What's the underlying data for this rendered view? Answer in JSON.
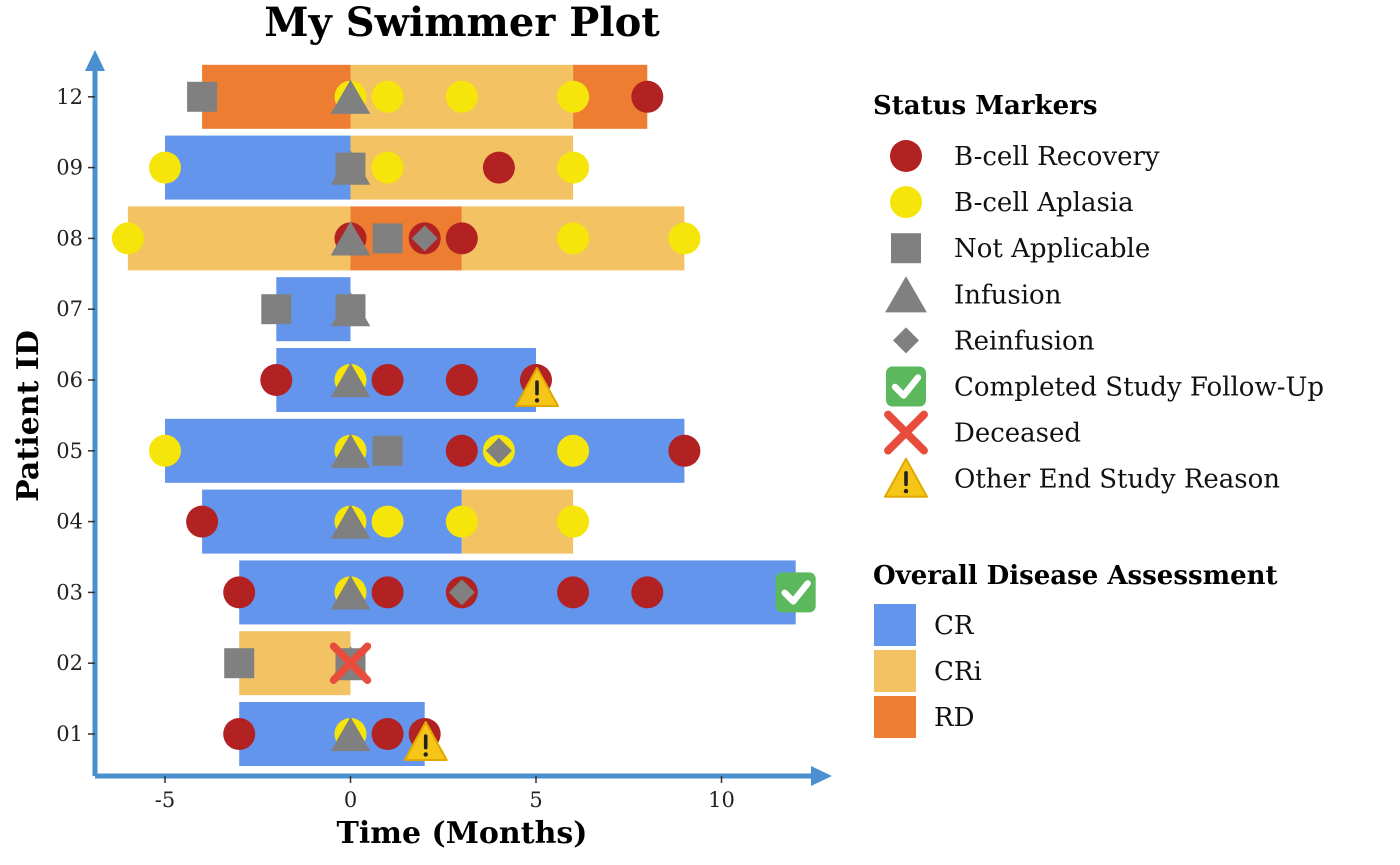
{
  "chart_data": {
    "type": "swimmer",
    "title": "My Swimmer Plot",
    "xlabel": "Time (Months)",
    "ylabel": "Patient ID",
    "xlim": [
      -7,
      13
    ],
    "xticks": [
      -5,
      0,
      5,
      10
    ],
    "x_tick_labels": [
      "-5",
      "0",
      "5",
      "10"
    ],
    "patients": [
      "01",
      "02",
      "03",
      "04",
      "05",
      "06",
      "07",
      "08",
      "09",
      "12"
    ],
    "assessment_colors": {
      "CR": "#6495ED",
      "CRi": "#F3C262",
      "RD": "#ED7D31"
    },
    "segments": [
      {
        "patient": "01",
        "start": -3,
        "end": 2,
        "status": "CR"
      },
      {
        "patient": "02",
        "start": -3,
        "end": 0,
        "status": "CRi"
      },
      {
        "patient": "03",
        "start": -3,
        "end": 12,
        "status": "CR"
      },
      {
        "patient": "04",
        "start": -4,
        "end": 3,
        "status": "CR"
      },
      {
        "patient": "04",
        "start": 3,
        "end": 6,
        "status": "CRi"
      },
      {
        "patient": "05",
        "start": -5,
        "end": 9,
        "status": "CR"
      },
      {
        "patient": "06",
        "start": -2,
        "end": 5,
        "status": "CR"
      },
      {
        "patient": "07",
        "start": -2,
        "end": 0,
        "status": "CR"
      },
      {
        "patient": "08",
        "start": -6,
        "end": 0,
        "status": "CRi"
      },
      {
        "patient": "08",
        "start": 0,
        "end": 3,
        "status": "RD"
      },
      {
        "patient": "08",
        "start": 3,
        "end": 9,
        "status": "CRi"
      },
      {
        "patient": "09",
        "start": -5,
        "end": 0,
        "status": "CR"
      },
      {
        "patient": "09",
        "start": 0,
        "end": 6,
        "status": "CRi"
      },
      {
        "patient": "12",
        "start": -4,
        "end": 0,
        "status": "RD"
      },
      {
        "patient": "12",
        "start": 0,
        "end": 6,
        "status": "CRi"
      },
      {
        "patient": "12",
        "start": 6,
        "end": 8,
        "status": "RD"
      }
    ],
    "markers": [
      {
        "patient": "01",
        "time": -3,
        "type": "B-cell Recovery"
      },
      {
        "patient": "01",
        "time": 0,
        "type": "B-cell Aplasia"
      },
      {
        "patient": "01",
        "time": 0,
        "type": "Infusion"
      },
      {
        "patient": "01",
        "time": 1,
        "type": "B-cell Recovery"
      },
      {
        "patient": "01",
        "time": 2,
        "type": "B-cell Recovery"
      },
      {
        "patient": "01",
        "time": 2,
        "type": "Other End Study Reason"
      },
      {
        "patient": "02",
        "time": -3,
        "type": "Not Applicable"
      },
      {
        "patient": "02",
        "time": 0,
        "type": "Not Applicable"
      },
      {
        "patient": "02",
        "time": 0,
        "type": "Infusion"
      },
      {
        "patient": "02",
        "time": 0,
        "type": "Deceased"
      },
      {
        "patient": "03",
        "time": -3,
        "type": "B-cell Recovery"
      },
      {
        "patient": "03",
        "time": 0,
        "type": "B-cell Aplasia"
      },
      {
        "patient": "03",
        "time": 0,
        "type": "Infusion"
      },
      {
        "patient": "03",
        "time": 1,
        "type": "B-cell Recovery"
      },
      {
        "patient": "03",
        "time": 3,
        "type": "B-cell Recovery"
      },
      {
        "patient": "03",
        "time": 3,
        "type": "Reinfusion"
      },
      {
        "patient": "03",
        "time": 6,
        "type": "B-cell Recovery"
      },
      {
        "patient": "03",
        "time": 8,
        "type": "B-cell Recovery"
      },
      {
        "patient": "03",
        "time": 12,
        "type": "Completed Study Follow-Up"
      },
      {
        "patient": "04",
        "time": -4,
        "type": "B-cell Recovery"
      },
      {
        "patient": "04",
        "time": 0,
        "type": "B-cell Aplasia"
      },
      {
        "patient": "04",
        "time": 0,
        "type": "Infusion"
      },
      {
        "patient": "04",
        "time": 1,
        "type": "B-cell Aplasia"
      },
      {
        "patient": "04",
        "time": 3,
        "type": "B-cell Aplasia"
      },
      {
        "patient": "04",
        "time": 6,
        "type": "B-cell Aplasia"
      },
      {
        "patient": "05",
        "time": -5,
        "type": "B-cell Aplasia"
      },
      {
        "patient": "05",
        "time": 0,
        "type": "B-cell Aplasia"
      },
      {
        "patient": "05",
        "time": 0,
        "type": "Infusion"
      },
      {
        "patient": "05",
        "time": 1,
        "type": "Not Applicable"
      },
      {
        "patient": "05",
        "time": 3,
        "type": "B-cell Recovery"
      },
      {
        "patient": "05",
        "time": 4,
        "type": "B-cell Aplasia"
      },
      {
        "patient": "05",
        "time": 4,
        "type": "Reinfusion"
      },
      {
        "patient": "05",
        "time": 6,
        "type": "B-cell Aplasia"
      },
      {
        "patient": "05",
        "time": 9,
        "type": "B-cell Recovery"
      },
      {
        "patient": "06",
        "time": -2,
        "type": "B-cell Recovery"
      },
      {
        "patient": "06",
        "time": 0,
        "type": "B-cell Aplasia"
      },
      {
        "patient": "06",
        "time": 0,
        "type": "Infusion"
      },
      {
        "patient": "06",
        "time": 1,
        "type": "B-cell Recovery"
      },
      {
        "patient": "06",
        "time": 3,
        "type": "B-cell Recovery"
      },
      {
        "patient": "06",
        "time": 5,
        "type": "B-cell Recovery"
      },
      {
        "patient": "06",
        "time": 5,
        "type": "Other End Study Reason"
      },
      {
        "patient": "07",
        "time": -2,
        "type": "Not Applicable"
      },
      {
        "patient": "07",
        "time": 0,
        "type": "Not Applicable"
      },
      {
        "patient": "07",
        "time": 0,
        "type": "Infusion"
      },
      {
        "patient": "08",
        "time": -6,
        "type": "B-cell Aplasia"
      },
      {
        "patient": "08",
        "time": 0,
        "type": "B-cell Recovery"
      },
      {
        "patient": "08",
        "time": 0,
        "type": "Infusion"
      },
      {
        "patient": "08",
        "time": 1,
        "type": "Not Applicable"
      },
      {
        "patient": "08",
        "time": 2,
        "type": "B-cell Recovery"
      },
      {
        "patient": "08",
        "time": 2,
        "type": "Reinfusion"
      },
      {
        "patient": "08",
        "time": 3,
        "type": "B-cell Recovery"
      },
      {
        "patient": "08",
        "time": 6,
        "type": "B-cell Aplasia"
      },
      {
        "patient": "08",
        "time": 9,
        "type": "B-cell Aplasia"
      },
      {
        "patient": "09",
        "time": -5,
        "type": "B-cell Aplasia"
      },
      {
        "patient": "09",
        "time": 0,
        "type": "Not Applicable"
      },
      {
        "patient": "09",
        "time": 0,
        "type": "Infusion"
      },
      {
        "patient": "09",
        "time": 1,
        "type": "B-cell Aplasia"
      },
      {
        "patient": "09",
        "time": 4,
        "type": "B-cell Recovery"
      },
      {
        "patient": "09",
        "time": 6,
        "type": "B-cell Aplasia"
      },
      {
        "patient": "12",
        "time": -4,
        "type": "Not Applicable"
      },
      {
        "patient": "12",
        "time": 0,
        "type": "B-cell Aplasia"
      },
      {
        "patient": "12",
        "time": 0,
        "type": "Infusion"
      },
      {
        "patient": "12",
        "time": 1,
        "type": "B-cell Aplasia"
      },
      {
        "patient": "12",
        "time": 3,
        "type": "B-cell Aplasia"
      },
      {
        "patient": "12",
        "time": 6,
        "type": "B-cell Aplasia"
      },
      {
        "patient": "12",
        "time": 8,
        "type": "B-cell Recovery"
      }
    ],
    "marker_styles": {
      "B-cell Recovery": {
        "shape": "circle",
        "color": "#B22222"
      },
      "B-cell Aplasia": {
        "shape": "circle",
        "color": "#F5E50A"
      },
      "Not Applicable": {
        "shape": "square",
        "color": "#808080"
      },
      "Infusion": {
        "shape": "triangle",
        "color": "#808080"
      },
      "Reinfusion": {
        "shape": "diamond",
        "color": "#808080"
      },
      "Completed Study Follow-Up": {
        "shape": "check-emoji",
        "color": "#5CB85C"
      },
      "Deceased": {
        "shape": "cross-emoji",
        "color": "#E74C3C"
      },
      "Other End Study Reason": {
        "shape": "warning-emoji",
        "color": "#F5C518"
      }
    },
    "legend": {
      "status_title": "Status Markers",
      "status_items": [
        "B-cell Recovery",
        "B-cell Aplasia",
        "Not Applicable",
        "Infusion",
        "Reinfusion",
        "Completed Study Follow-Up",
        "Deceased",
        "Other End Study Reason"
      ],
      "assessment_title": "Overall Disease Assessment",
      "assessment_items": [
        "CR",
        "CRi",
        "RD"
      ],
      "placement": "right"
    },
    "axis_color": "#4A8FD0",
    "grid": false
  }
}
